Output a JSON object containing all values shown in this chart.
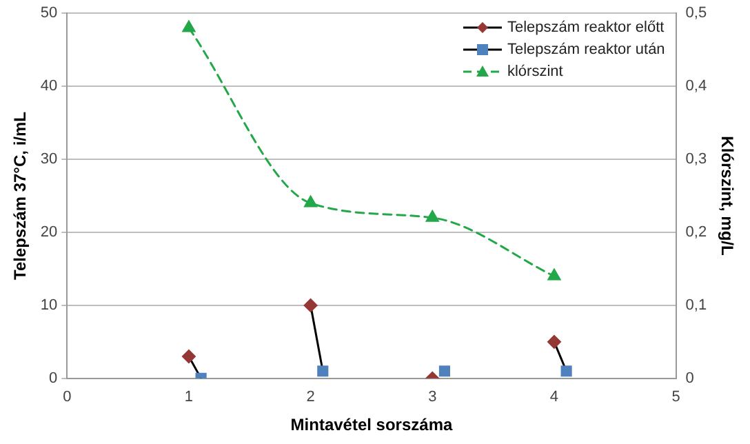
{
  "chart_data": {
    "type": "scatter",
    "xlabel": "Mintavétel sorszáma",
    "ylabel": "Telepszám 37°C, i/mL",
    "y2label": "Klórszint, mg/L",
    "xlim": [
      0,
      5
    ],
    "xticks": [
      0,
      1,
      2,
      3,
      4,
      5
    ],
    "ylim": [
      0,
      50
    ],
    "yticks": [
      0,
      10,
      20,
      30,
      40,
      50
    ],
    "y2lim": [
      0,
      0.5
    ],
    "y2ticks": [
      0,
      {
        "value": 0.1,
        "label": "0,1"
      },
      {
        "value": 0.2,
        "label": "0,2"
      },
      {
        "value": 0.3,
        "label": "0,3"
      },
      {
        "value": 0.4,
        "label": "0,4"
      },
      {
        "value": 0.5,
        "label": "0,5"
      }
    ],
    "grid": "y",
    "legend": "top right",
    "series": [
      {
        "type": "line",
        "color": "#000000",
        "marker": "none",
        "x": [
          1,
          1.1
        ],
        "values": [
          3,
          0
        ]
      },
      {
        "type": "line",
        "color": "#000000",
        "marker": "none",
        "x": [
          2,
          2.1
        ],
        "values": [
          10,
          1
        ]
      },
      {
        "type": "line",
        "color": "#000000",
        "marker": "none",
        "x": [
          4,
          4.1
        ],
        "values": [
          5,
          1
        ]
      },
      {
        "name": "Telepszám reaktor előtt",
        "color": "#953735",
        "marker": "diamond",
        "x": [
          1,
          2,
          3,
          4
        ],
        "values": [
          3,
          10,
          0,
          5
        ]
      },
      {
        "name": "Telepszám reaktor után",
        "color": "#4f81bd",
        "marker": "square",
        "x": [
          1.1,
          2.1,
          3.1,
          4.1
        ],
        "values": [
          0,
          1,
          1,
          1
        ]
      },
      {
        "type": "line",
        "name": "klórszint",
        "color": "#23a849",
        "marker": "triangle",
        "line_style": "dashed",
        "axis": "y2",
        "x": [
          1,
          2,
          3,
          4
        ],
        "values": [
          0.48,
          0.24,
          0.22,
          0.14
        ]
      }
    ]
  }
}
